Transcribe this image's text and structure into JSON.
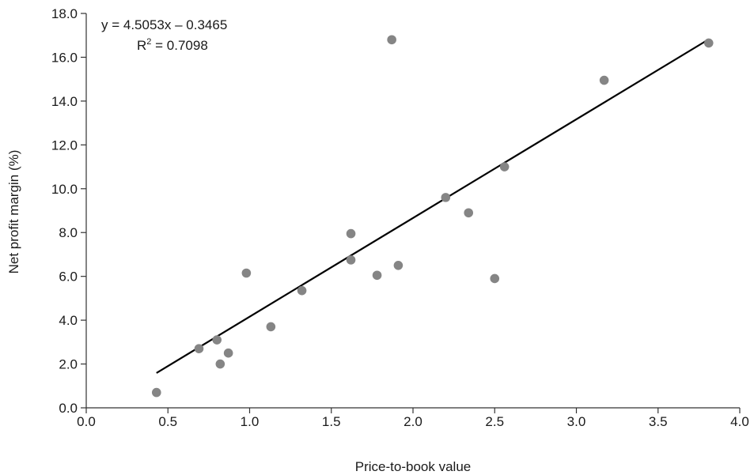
{
  "chart_data": {
    "type": "scatter",
    "title": "",
    "xlabel": "Price-to-book value",
    "ylabel": "Net profit margin (%)",
    "xlim": [
      0.0,
      4.0
    ],
    "ylim": [
      0.0,
      18.0
    ],
    "x_ticks": [
      "0.0",
      "0.5",
      "1.0",
      "1.5",
      "2.0",
      "2.5",
      "3.0",
      "3.5",
      "4.0"
    ],
    "y_ticks": [
      "0.0",
      "2.0",
      "4.0",
      "6.0",
      "8.0",
      "10.0",
      "12.0",
      "14.0",
      "16.0",
      "18.0"
    ],
    "grid": false,
    "legend": "none",
    "point_color": "#858585",
    "line_color": "#000000",
    "points": [
      {
        "x": 0.43,
        "y": 0.7
      },
      {
        "x": 0.69,
        "y": 2.7
      },
      {
        "x": 0.8,
        "y": 3.1
      },
      {
        "x": 0.82,
        "y": 2.0
      },
      {
        "x": 0.87,
        "y": 2.5
      },
      {
        "x": 0.98,
        "y": 6.15
      },
      {
        "x": 1.13,
        "y": 3.7
      },
      {
        "x": 1.32,
        "y": 5.35
      },
      {
        "x": 1.62,
        "y": 7.95
      },
      {
        "x": 1.62,
        "y": 6.75
      },
      {
        "x": 1.78,
        "y": 6.05
      },
      {
        "x": 1.87,
        "y": 16.8
      },
      {
        "x": 1.91,
        "y": 6.5
      },
      {
        "x": 2.2,
        "y": 9.6
      },
      {
        "x": 2.34,
        "y": 8.9
      },
      {
        "x": 2.5,
        "y": 5.9
      },
      {
        "x": 2.56,
        "y": 11.0
      },
      {
        "x": 3.17,
        "y": 14.95
      },
      {
        "x": 3.81,
        "y": 16.65
      }
    ],
    "trendline": {
      "slope": 4.5053,
      "intercept": -0.3465,
      "x_range": [
        0.43,
        3.81
      ],
      "equation": "y = 4.5053x – 0.3465",
      "r2_prefix": "R",
      "r2_sup": "2",
      "r2_suffix": " = 0.7098"
    }
  }
}
